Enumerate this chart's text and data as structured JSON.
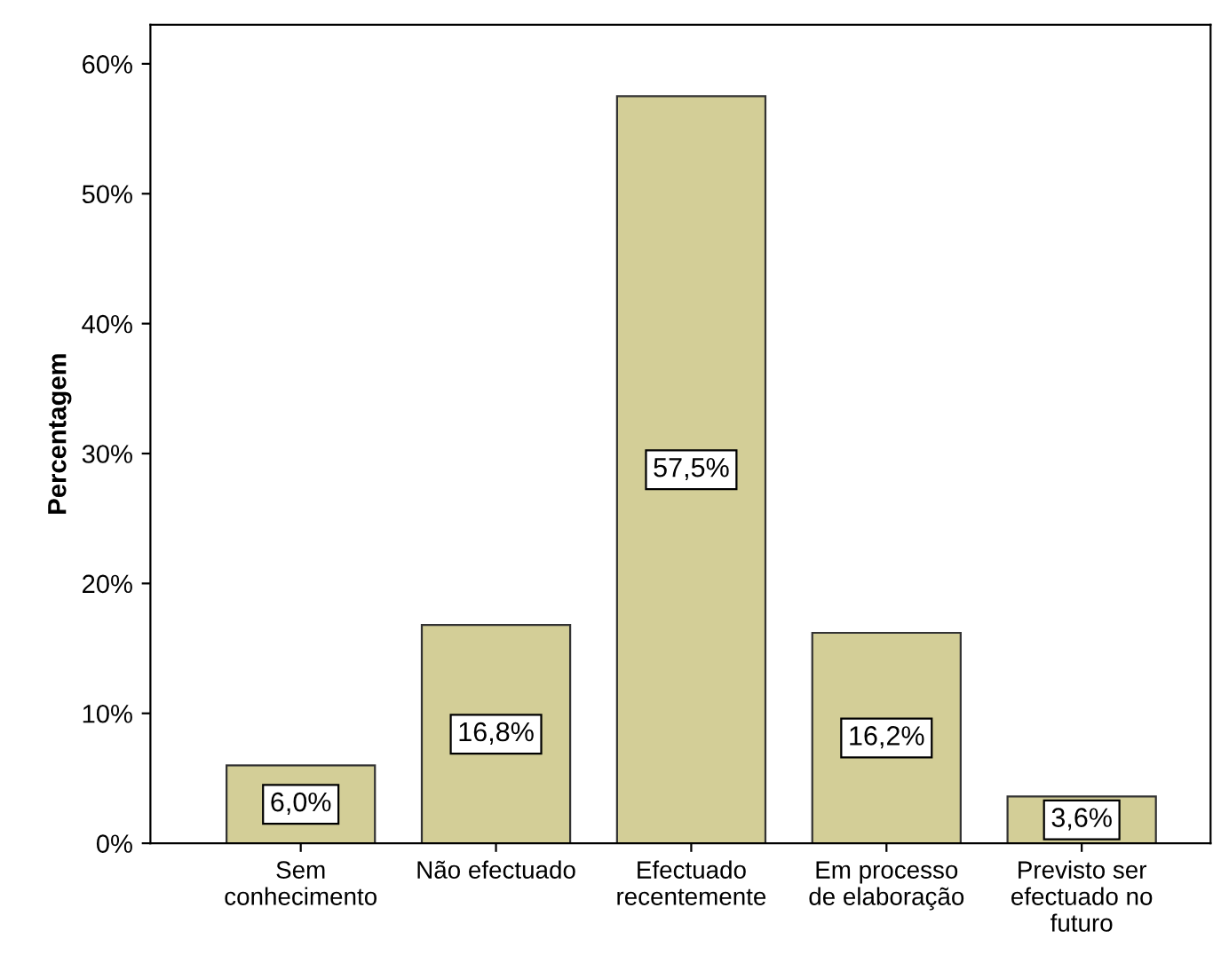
{
  "chart_data": {
    "type": "bar",
    "ylabel": "Percentagem",
    "categories": [
      "Sem\nconhecimento",
      "Não efectuado",
      "Efectuado\nrecentemente",
      "Em processo\nde elaboração",
      "Previsto ser\nefectuado no\nfuturo"
    ],
    "values": [
      6.0,
      16.8,
      57.5,
      16.2,
      3.6
    ],
    "value_labels": [
      "6,0%",
      "16,8%",
      "57,5%",
      "16,2%",
      "3,6%"
    ],
    "color": "#d3ce97",
    "ylim": [
      0,
      63
    ],
    "yticks": [
      {
        "value": 0,
        "label": "0%"
      },
      {
        "value": 10,
        "label": "10%"
      },
      {
        "value": 20,
        "label": "20%"
      },
      {
        "value": 30,
        "label": "30%"
      },
      {
        "value": 40,
        "label": "40%"
      },
      {
        "value": 50,
        "label": "50%"
      },
      {
        "value": 60,
        "label": "60%"
      }
    ],
    "grid": false,
    "legend": false
  }
}
